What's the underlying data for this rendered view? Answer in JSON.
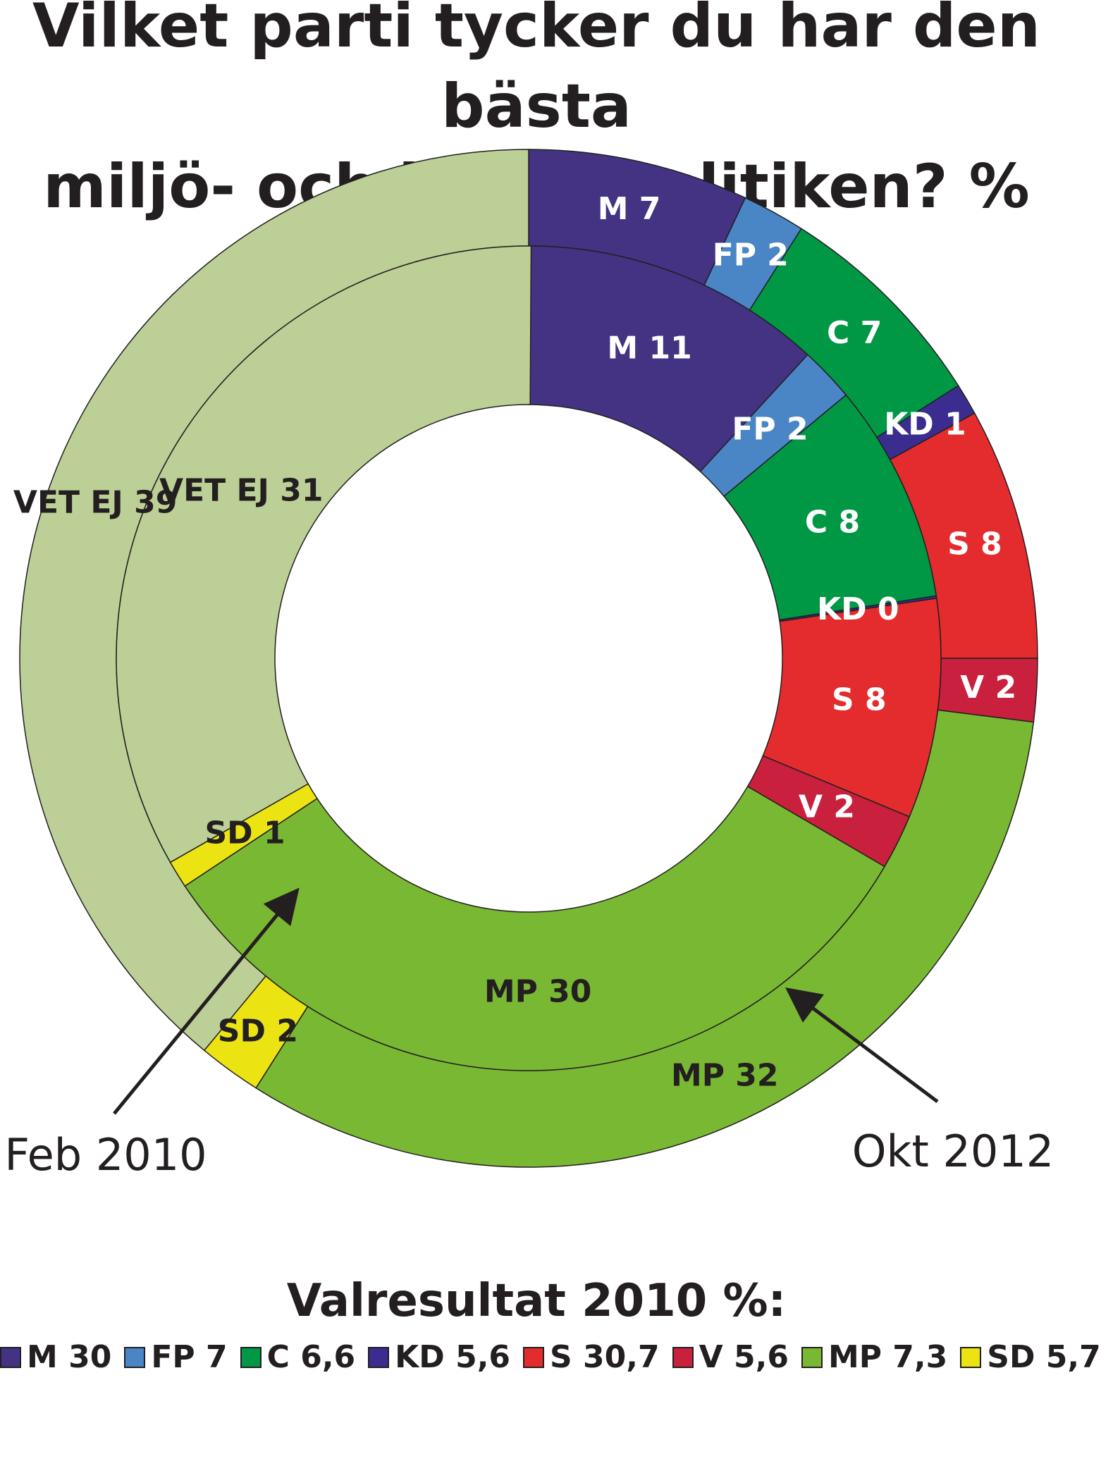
{
  "chart_data": {
    "type": "donut",
    "title_lines": [
      "Vilket parti tycker du har den bästa",
      "miljö- och klimatpolitiken? %"
    ],
    "rings": [
      {
        "name": "Okt 2012",
        "position": "outer",
        "segments": [
          {
            "label": "M 7",
            "value": 7,
            "color": "#443283",
            "label_color": "#ffffff"
          },
          {
            "label": "FP 2",
            "value": 2,
            "color": "#4a86c6",
            "label_color": "#ffffff"
          },
          {
            "label": "C 7",
            "value": 7,
            "color": "#009845",
            "label_color": "#ffffff"
          },
          {
            "label": "KD 1",
            "value": 1,
            "color": "#3a2d8f",
            "label_color": "#ffffff"
          },
          {
            "label": "S 8",
            "value": 8,
            "color": "#e42c2e",
            "label_color": "#ffffff"
          },
          {
            "label": "V 2",
            "value": 2,
            "color": "#c8203d",
            "label_color": "#ffffff"
          },
          {
            "label": "MP 32",
            "value": 32,
            "color": "#79b832",
            "label_color": "#231f20"
          },
          {
            "label": "SD 2",
            "value": 2,
            "color": "#ece412",
            "label_color": "#231f20"
          },
          {
            "label": "VET EJ 39",
            "value": 39,
            "color": "#bccf96",
            "label_color": "#231f20"
          }
        ]
      },
      {
        "name": "Feb 2010",
        "position": "inner",
        "segments": [
          {
            "label": "M 11",
            "value": 11,
            "color": "#443283",
            "label_color": "#ffffff"
          },
          {
            "label": "FP 2",
            "value": 2,
            "color": "#4a86c6",
            "label_color": "#ffffff"
          },
          {
            "label": "C 8",
            "value": 8,
            "color": "#009845",
            "label_color": "#ffffff"
          },
          {
            "label": "KD 0",
            "value": 0,
            "color": "#3a2d8f",
            "label_color": "#ffffff"
          },
          {
            "label": "S 8",
            "value": 8,
            "color": "#e42c2e",
            "label_color": "#ffffff"
          },
          {
            "label": "V 2",
            "value": 2,
            "color": "#c8203d",
            "label_color": "#ffffff"
          },
          {
            "label": "MP 30",
            "value": 30,
            "color": "#79b832",
            "label_color": "#231f20"
          },
          {
            "label": "SD 1",
            "value": 1,
            "color": "#ece412",
            "label_color": "#231f20"
          },
          {
            "label": "VET EJ 31",
            "value": 31,
            "color": "#bccf96",
            "label_color": "#231f20"
          }
        ]
      }
    ],
    "annotations": [
      "Feb 2010",
      "Okt 2012"
    ]
  },
  "legend": {
    "title": "Valresultat 2010 %:",
    "items": [
      {
        "label": "M 30",
        "color": "#443283"
      },
      {
        "label": "FP 7",
        "color": "#4a86c6"
      },
      {
        "label": "C 6,6",
        "color": "#009845"
      },
      {
        "label": "KD 5,6",
        "color": "#3a2d8f"
      },
      {
        "label": "S 30,7",
        "color": "#e42c2e"
      },
      {
        "label": "V 5,6",
        "color": "#c8203d"
      },
      {
        "label": "MP 7,3",
        "color": "#79b832"
      },
      {
        "label": "SD 5,7",
        "color": "#ece412"
      }
    ]
  }
}
